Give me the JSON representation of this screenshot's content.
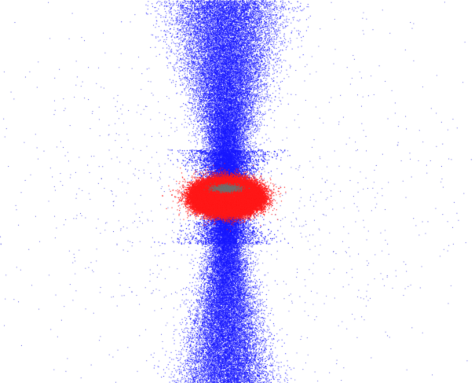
{
  "image": {
    "background_color": "#ffffff",
    "subject": "particle-simulation-render",
    "components": [
      {
        "name": "bipolar-outflow-upper",
        "color": "#1a1aff"
      },
      {
        "name": "bipolar-outflow-lower",
        "color": "#1a1aff"
      },
      {
        "name": "accretion-torus",
        "color": "#ff1a1a"
      },
      {
        "name": "central-core",
        "color": "#707070"
      },
      {
        "name": "diffuse-halo",
        "color": "#4a4ae0"
      }
    ]
  }
}
